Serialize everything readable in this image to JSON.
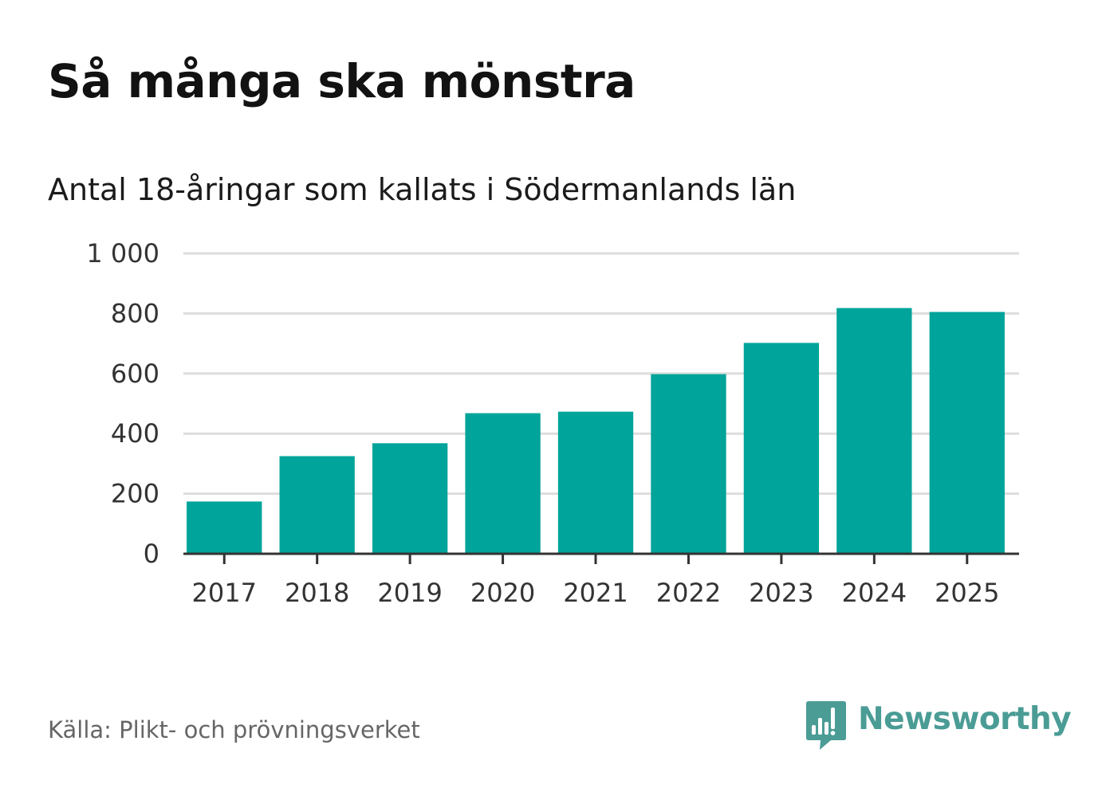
{
  "title": "Så många ska mönstra",
  "subtitle": "Antal 18-åringar som kallats i Södermanlands län",
  "source": "Källa: Plikt- och prövningsverket",
  "brand": {
    "name": "Newsworthy",
    "icon": "newsworthy-logo-icon",
    "color": "#4a9c95"
  },
  "colors": {
    "bar": "#00a49a",
    "grid": "#dddddd",
    "axis": "#333333"
  },
  "chart_data": {
    "type": "bar",
    "title": "Så många ska mönstra",
    "subtitle": "Antal 18-åringar som kallats i Södermanlands län",
    "xlabel": "",
    "ylabel": "",
    "categories": [
      "2017",
      "2018",
      "2019",
      "2020",
      "2021",
      "2022",
      "2023",
      "2024",
      "2025"
    ],
    "values": [
      174,
      325,
      368,
      468,
      473,
      598,
      702,
      818,
      805
    ],
    "ylim": [
      0,
      1000
    ],
    "yticks": [
      0,
      200,
      400,
      600,
      800,
      1000
    ],
    "ytick_labels": [
      "0",
      "200",
      "400",
      "600",
      "800",
      "1 000"
    ],
    "grid": true,
    "legend": "none"
  }
}
